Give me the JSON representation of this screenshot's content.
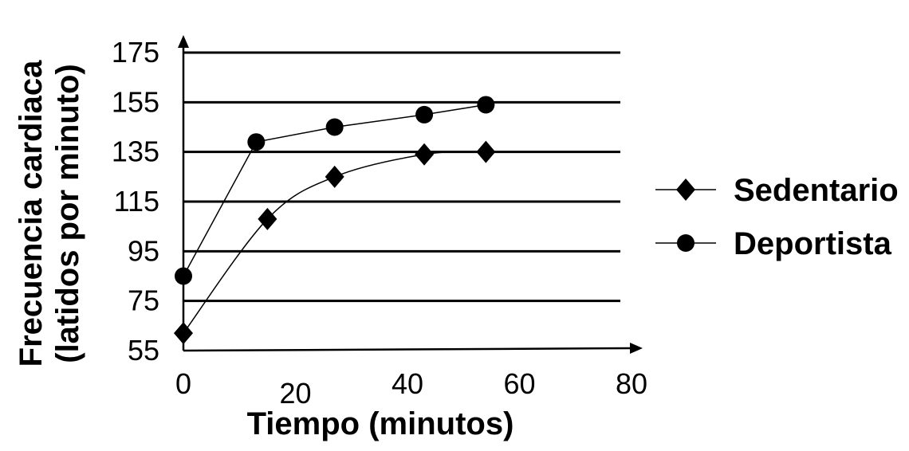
{
  "chart_data": {
    "type": "line",
    "title": "",
    "xlabel": "Tiempo (minutos)",
    "ylabel_line1": "Frecuencia cardiaca",
    "ylabel_line2": "(latidos por minuto)",
    "xlim": [
      0,
      80
    ],
    "ylim": [
      55,
      175
    ],
    "x_ticks": [
      "0",
      "20",
      "40",
      "60",
      "80"
    ],
    "y_ticks": [
      "55",
      "75",
      "95",
      "115",
      "135",
      "155",
      "175"
    ],
    "grid": "horizontal",
    "legend_position": "right",
    "series": [
      {
        "name": "Sedentario",
        "marker": "diamond",
        "color": "#000000",
        "x": [
          0,
          15,
          27,
          43,
          54
        ],
        "y": [
          62,
          108,
          125,
          134,
          135
        ]
      },
      {
        "name": "Deportista",
        "marker": "circle",
        "color": "#000000",
        "x": [
          0,
          13,
          27,
          43,
          54
        ],
        "y": [
          85,
          139,
          145,
          150,
          154
        ]
      }
    ]
  }
}
